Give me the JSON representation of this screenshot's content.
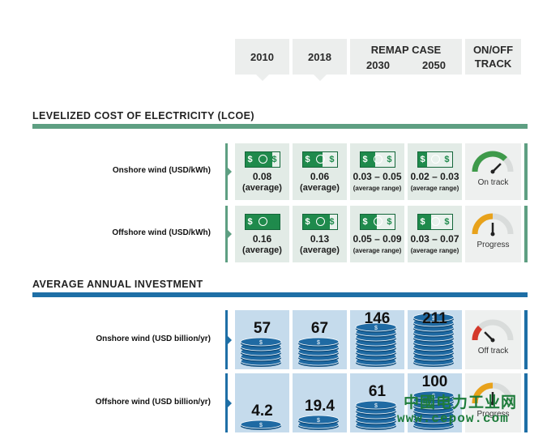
{
  "headers": {
    "y2010": "2010",
    "y2018": "2018",
    "remap": "REMAP CASE",
    "y2030": "2030",
    "y2050": "2050",
    "onoff_line1": "ON/OFF",
    "onoff_line2": "TRACK"
  },
  "lcoe": {
    "title": "LEVELIZED COST OF ELECTRICITY (LCOE)",
    "accent_color": "#5e9f82",
    "bill_symbol": "$",
    "rows": [
      {
        "label": "Onshore wind (USD/kWh)",
        "cells": [
          {
            "value": "0.08",
            "note": "(average)",
            "bill_fill": 0.8
          },
          {
            "value": "0.06",
            "note": "(average)",
            "bill_fill": 0.6
          },
          {
            "value": "0.03 – 0.05",
            "note": "(average range)",
            "bill_fill": 0.45
          },
          {
            "value": "0.02 – 0.03",
            "note": "(average range)",
            "bill_fill": 0.3
          }
        ],
        "status": "On track",
        "status_color": "#3e9a4a"
      },
      {
        "label": "Offshore wind (USD/kWh)",
        "cells": [
          {
            "value": "0.16",
            "note": "(average)",
            "bill_fill": 1.0
          },
          {
            "value": "0.13",
            "note": "(average)",
            "bill_fill": 0.8
          },
          {
            "value": "0.05 – 0.09",
            "note": "(average range)",
            "bill_fill": 0.5
          },
          {
            "value": "0.03 – 0.07",
            "note": "(average range)",
            "bill_fill": 0.4
          }
        ],
        "status": "Progress",
        "status_color": "#e8a21b"
      }
    ]
  },
  "investment": {
    "title": "AVERAGE ANNUAL INVESTMENT",
    "accent_color": "#1e6fa6",
    "coin_color": "#1f6aa3",
    "rows": [
      {
        "label": "Onshore wind (USD billion/yr)",
        "values": [
          "57",
          "67",
          "146",
          "211"
        ],
        "coins": [
          5,
          5,
          8,
          10
        ],
        "status": "Off track",
        "status_color": "#d4392b"
      },
      {
        "label": "Offshore wind (USD billion/yr)",
        "values": [
          "4.2",
          "19.4",
          "61",
          "100"
        ],
        "coins": [
          1,
          2,
          5,
          7
        ],
        "status": "Progress",
        "status_color": "#e8a21b"
      }
    ]
  },
  "watermark": {
    "line1": "中國电力工业网",
    "line2": "www.cepow.com"
  }
}
